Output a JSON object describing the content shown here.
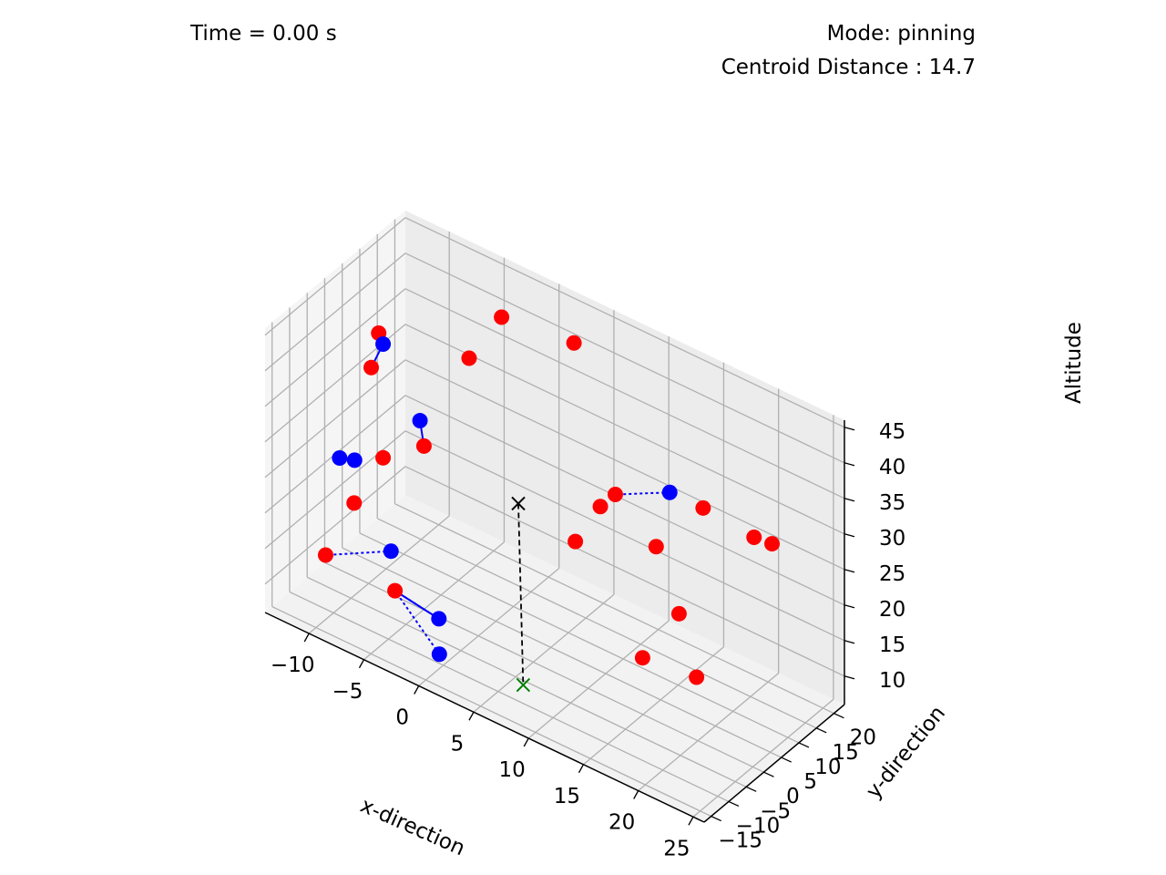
{
  "header": {
    "time_text": "Time = 0.00 s",
    "mode_text": "Mode: pinning",
    "centroid_text": "Centroid Distance : 14.7"
  },
  "chart_data": {
    "type": "scatter",
    "projection": "3d",
    "xlabel": "x-direction",
    "ylabel": "y-direction",
    "zlabel": "Altitude",
    "xlim": [
      -14,
      26
    ],
    "ylim": [
      -17,
      23
    ],
    "zlim": [
      6,
      46
    ],
    "xticks": [
      -10,
      -5,
      0,
      5,
      10,
      15,
      20,
      25
    ],
    "yticks": [
      -15,
      -10,
      -5,
      0,
      5,
      10,
      15,
      20
    ],
    "zticks": [
      10,
      15,
      20,
      25,
      30,
      35,
      40,
      45
    ],
    "tick_labels": {
      "x": [
        "−10",
        "−5",
        "0",
        "5",
        "10",
        "15",
        "20",
        "25"
      ],
      "y": [
        "−15",
        "−10",
        "−5",
        "0",
        "5",
        "10",
        "15",
        "20"
      ],
      "z": [
        "10",
        "15",
        "20",
        "25",
        "30",
        "35",
        "40",
        "45"
      ]
    },
    "grid": true,
    "colors": {
      "targets": "#ff0000",
      "agents": "#0000ff",
      "centroid": "#000000",
      "destination": "#008000",
      "pane": "#f2f2f2",
      "grid": "#b0b0b0"
    },
    "targets": [
      [
        -3,
        16,
        42
      ],
      [
        2,
        21,
        40
      ],
      [
        -12,
        7,
        32
      ],
      [
        -5,
        13,
        36
      ],
      [
        -11,
        6,
        38
      ],
      [
        -9,
        1,
        24
      ],
      [
        -11,
        -1,
        17
      ],
      [
        -12,
        -6,
        11
      ],
      [
        -6,
        -5,
        10
      ],
      [
        8,
        14,
        26
      ],
      [
        6,
        16,
        22
      ],
      [
        5,
        12,
        18
      ],
      [
        16,
        14,
        30
      ],
      [
        13,
        10,
        24
      ],
      [
        20,
        16,
        28
      ],
      [
        21,
        18,
        27
      ],
      [
        17,
        4,
        20
      ],
      [
        14,
        3,
        12
      ],
      [
        17,
        9,
        9
      ],
      [
        -4,
        -3,
        31
      ]
    ],
    "agents": [
      [
        -9,
        1,
        40
      ],
      [
        -5,
        -1,
        33
      ],
      [
        -10,
        -4,
        25
      ],
      [
        -12,
        -2,
        23
      ],
      [
        -7,
        -3,
        14
      ],
      [
        -2,
        -5,
        9
      ],
      [
        -1,
        -8,
        6
      ],
      [
        12,
        17,
        28
      ]
    ],
    "links_solid": [
      [
        0,
        2
      ],
      [
        1,
        19
      ],
      [
        5,
        8
      ]
    ],
    "links_dotted": [
      [
        4,
        7
      ],
      [
        5,
        8
      ],
      [
        6,
        8
      ],
      [
        7,
        9
      ]
    ],
    "centroid": [
      3,
      2,
      26
    ],
    "destination": [
      6,
      -6,
      6
    ]
  }
}
